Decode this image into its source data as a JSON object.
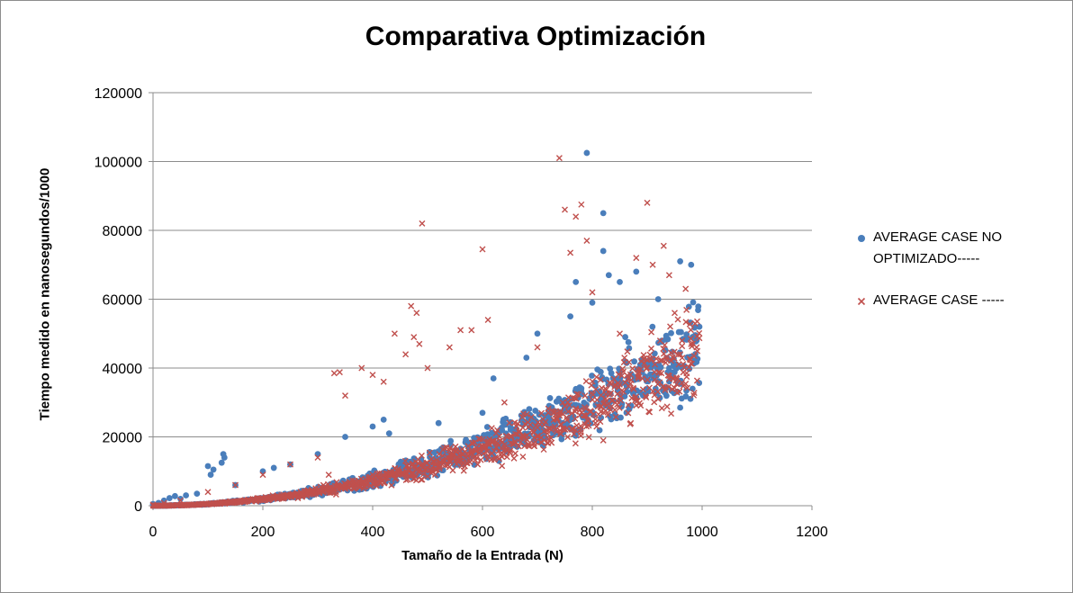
{
  "chart_data": {
    "type": "scatter",
    "title": "Comparativa Optimización",
    "xlabel": "Tamaño  de la Entrada (N)",
    "ylabel": "Tiempo medido en nanosegundos/1000",
    "xlim": [
      0,
      1200
    ],
    "ylim": [
      0,
      120000
    ],
    "x_ticks": [
      "0",
      "200",
      "400",
      "600",
      "800",
      "1000",
      "1200"
    ],
    "y_ticks": [
      "0",
      "20000",
      "40000",
      "60000",
      "80000",
      "100000",
      "120000"
    ],
    "grid": "horizontal",
    "legend_position": "right",
    "series": [
      {
        "name": "AVERAGE CASE NO OPTIMIZADO-----",
        "marker": "circle",
        "color": "#4a7ebb",
        "trend": {
          "coef": 0.0455,
          "exp": 2,
          "n_points": 1000,
          "x_max": 995
        },
        "points": [
          [
            0,
            500
          ],
          [
            10,
            800
          ],
          [
            20,
            1500
          ],
          [
            30,
            2200
          ],
          [
            40,
            2800
          ],
          [
            50,
            2000
          ],
          [
            60,
            3000
          ],
          [
            80,
            3500
          ],
          [
            100,
            11500
          ],
          [
            105,
            9000
          ],
          [
            110,
            10500
          ],
          [
            125,
            12500
          ],
          [
            128,
            15000
          ],
          [
            130,
            14000
          ],
          [
            150,
            6000
          ],
          [
            200,
            10000
          ],
          [
            220,
            11000
          ],
          [
            250,
            12000
          ],
          [
            300,
            15000
          ],
          [
            350,
            20000
          ],
          [
            400,
            23000
          ],
          [
            420,
            25000
          ],
          [
            430,
            21000
          ],
          [
            500,
            10500
          ],
          [
            520,
            24000
          ],
          [
            560,
            14000
          ],
          [
            600,
            27000
          ],
          [
            620,
            37000
          ],
          [
            630,
            13000
          ],
          [
            680,
            43000
          ],
          [
            700,
            50000
          ],
          [
            710,
            17500
          ],
          [
            760,
            55000
          ],
          [
            770,
            65000
          ],
          [
            790,
            102500
          ],
          [
            800,
            59000
          ],
          [
            820,
            85000
          ],
          [
            820,
            74000
          ],
          [
            830,
            67000
          ],
          [
            850,
            65000
          ],
          [
            860,
            49000
          ],
          [
            880,
            68000
          ],
          [
            900,
            42000
          ],
          [
            920,
            60000
          ],
          [
            940,
            40000
          ],
          [
            960,
            71000
          ],
          [
            960,
            28500
          ],
          [
            980,
            70000
          ],
          [
            990,
            48000
          ],
          [
            995,
            52000
          ]
        ]
      },
      {
        "name": "AVERAGE CASE -----",
        "marker": "x",
        "color": "#c0504d",
        "trend": {
          "coef": 0.044,
          "exp": 2,
          "n_points": 1000,
          "x_max": 995
        },
        "points": [
          [
            0,
            300
          ],
          [
            20,
            800
          ],
          [
            50,
            1500
          ],
          [
            100,
            4000
          ],
          [
            150,
            6000
          ],
          [
            200,
            9000
          ],
          [
            250,
            12000
          ],
          [
            300,
            14000
          ],
          [
            320,
            9000
          ],
          [
            330,
            38500
          ],
          [
            340,
            38800
          ],
          [
            350,
            32000
          ],
          [
            380,
            40000
          ],
          [
            400,
            38000
          ],
          [
            420,
            36000
          ],
          [
            440,
            50000
          ],
          [
            460,
            44000
          ],
          [
            470,
            58000
          ],
          [
            475,
            49000
          ],
          [
            480,
            56000
          ],
          [
            485,
            47000
          ],
          [
            490,
            82000
          ],
          [
            500,
            40000
          ],
          [
            540,
            46000
          ],
          [
            560,
            51000
          ],
          [
            580,
            51000
          ],
          [
            600,
            74500
          ],
          [
            610,
            54000
          ],
          [
            640,
            30000
          ],
          [
            700,
            46000
          ],
          [
            720,
            27000
          ],
          [
            740,
            101000
          ],
          [
            750,
            86000
          ],
          [
            760,
            73500
          ],
          [
            770,
            84000
          ],
          [
            780,
            87500
          ],
          [
            790,
            77000
          ],
          [
            800,
            62000
          ],
          [
            820,
            19000
          ],
          [
            850,
            50000
          ],
          [
            870,
            24000
          ],
          [
            880,
            72000
          ],
          [
            900,
            88000
          ],
          [
            910,
            70000
          ],
          [
            920,
            31000
          ],
          [
            930,
            75500
          ],
          [
            940,
            67000
          ],
          [
            950,
            56000
          ],
          [
            960,
            44000
          ],
          [
            970,
            63000
          ],
          [
            980,
            47000
          ],
          [
            990,
            46000
          ]
        ]
      }
    ]
  }
}
